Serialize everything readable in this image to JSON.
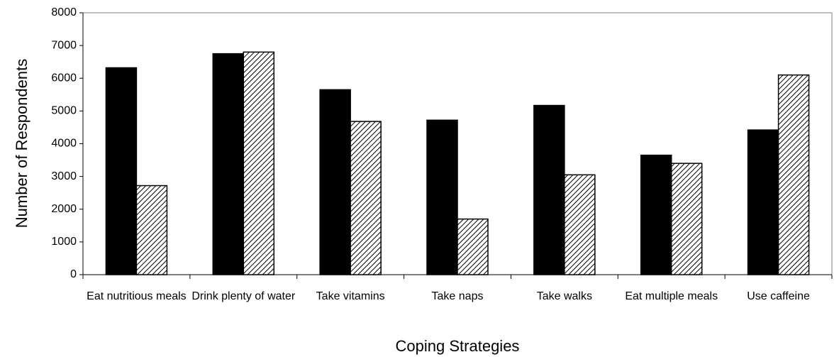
{
  "chart_data": {
    "type": "bar",
    "xlabel": "Coping Strategies",
    "ylabel": "Number of Respondents",
    "categories": [
      "Eat nutritious meals",
      "Drink plenty of water",
      "Take vitamins",
      "Take naps",
      "Take walks",
      "Eat multiple meals",
      "Use caffeine"
    ],
    "series": [
      {
        "color": "#000000",
        "pattern": "solid",
        "values": [
          6320,
          6750,
          5650,
          4720,
          5170,
          3650,
          4420
        ]
      },
      {
        "color": "#000000",
        "pattern": "hatch",
        "values": [
          2720,
          6800,
          4680,
          1700,
          3050,
          3400,
          6100
        ]
      }
    ],
    "ylim": [
      0,
      8000
    ],
    "yticks": [
      0,
      1000,
      2000,
      3000,
      4000,
      5000,
      6000,
      7000,
      8000
    ],
    "grid": false
  }
}
